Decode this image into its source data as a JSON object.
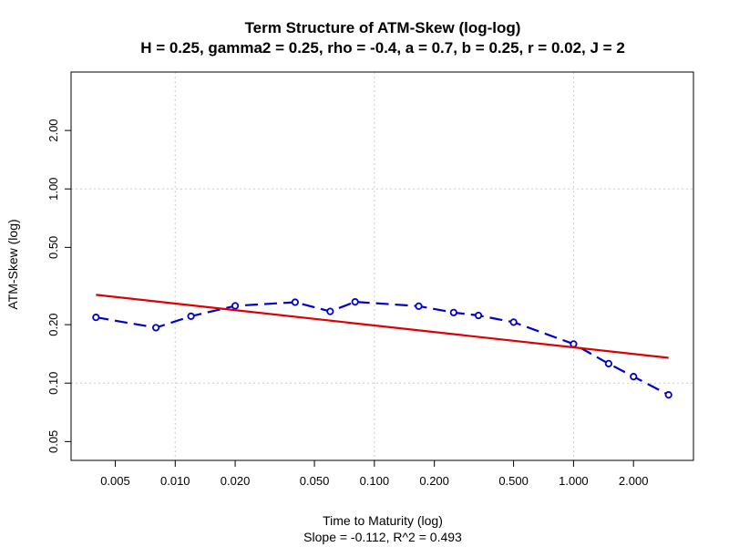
{
  "chart_data": {
    "type": "line",
    "title": "Term Structure of ATM-Skew (log-log)",
    "subtitle": "H = 0.25, gamma2 = 0.25, rho = -0.4, a = 0.7, b = 0.25, r = 0.02, J = 2",
    "xlabel": "Time to Maturity (log)",
    "ylabel": "ATM-Skew (log)",
    "sub_caption": "Slope = -0.112, R^2 = 0.493",
    "x_scale": "log",
    "y_scale": "log",
    "xlim": [
      0.003,
      4.0
    ],
    "ylim": [
      0.04,
      4.0
    ],
    "x_ticks": [
      0.005,
      0.01,
      0.02,
      0.05,
      0.1,
      0.2,
      0.5,
      1.0,
      2.0
    ],
    "x_tick_labels": [
      "0.005",
      "0.010",
      "0.020",
      "0.050",
      "0.100",
      "0.200",
      "0.500",
      "1.000",
      "2.000"
    ],
    "y_ticks": [
      0.05,
      0.1,
      0.2,
      0.5,
      1.0,
      2.0
    ],
    "y_tick_labels": [
      "0.05",
      "0.10",
      "0.20",
      "0.50",
      "1.00",
      "2.00"
    ],
    "grid_x": [
      0.01,
      0.1,
      1.0
    ],
    "grid_y": [
      0.1,
      1.0
    ],
    "grid": true,
    "series": [
      {
        "color": "#0000cc",
        "style": "dashed-with-circles",
        "x": [
          0.004,
          0.008,
          0.012,
          0.02,
          0.04,
          0.06,
          0.08,
          0.167,
          0.25,
          0.333,
          0.5,
          1.0,
          1.5,
          2.0,
          3.0
        ],
        "y": [
          0.218,
          0.193,
          0.221,
          0.25,
          0.261,
          0.234,
          0.262,
          0.249,
          0.231,
          0.223,
          0.206,
          0.159,
          0.126,
          0.108,
          0.087
        ]
      },
      {
        "color": "#dd0000",
        "style": "solid",
        "x": [
          0.004,
          3.0
        ],
        "y": [
          0.285,
          0.135
        ]
      }
    ]
  }
}
